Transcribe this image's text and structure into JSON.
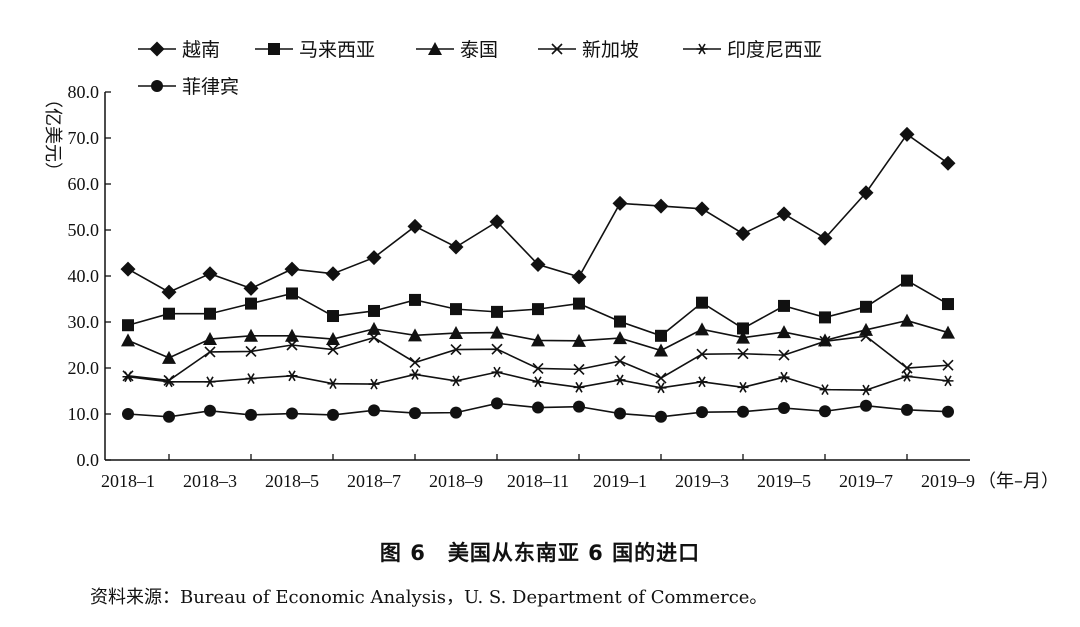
{
  "chart_data": {
    "type": "line",
    "y_unit_label": "（亿美元）",
    "x_unit_label": "（年–月）",
    "ylim": [
      0,
      80
    ],
    "y_ticks": [
      "0.0",
      "10.0",
      "20.0",
      "30.0",
      "40.0",
      "50.0",
      "60.0",
      "70.0",
      "80.0"
    ],
    "x": [
      "2018–1",
      "2018–2",
      "2018–3",
      "2018–4",
      "2018–5",
      "2018–6",
      "2018–7",
      "2018–8",
      "2018–9",
      "2018–10",
      "2018–11",
      "2018–12",
      "2019–1",
      "2019–2",
      "2019–3",
      "2019–4",
      "2019–5",
      "2019–6",
      "2019–7",
      "2019–8",
      "2019–9"
    ],
    "x_tick_labels": [
      "2018–1",
      "2018–3",
      "2018–5",
      "2018–7",
      "2018–9",
      "2018–11",
      "2019–1",
      "2019–3",
      "2019–5",
      "2019–7",
      "2019–9"
    ],
    "grid": false,
    "legend_position": "top",
    "series": [
      {
        "name": "越南",
        "marker": "diamond",
        "values": [
          41.5,
          36.5,
          40.5,
          37.3,
          41.5,
          40.5,
          44.0,
          50.8,
          46.3,
          51.8,
          42.5,
          39.8,
          55.8,
          55.2,
          54.6,
          49.2,
          53.5,
          48.2,
          58.1,
          70.8,
          64.5
        ]
      },
      {
        "name": "马来西亚",
        "marker": "square",
        "values": [
          29.3,
          31.8,
          31.8,
          34.0,
          36.2,
          31.3,
          32.4,
          34.8,
          32.8,
          32.2,
          32.8,
          34.0,
          30.1,
          27.0,
          34.2,
          28.6,
          33.5,
          31.0,
          33.3,
          39.0,
          33.9
        ]
      },
      {
        "name": "泰国",
        "marker": "triangle",
        "values": [
          26.0,
          22.2,
          26.3,
          27.0,
          27.0,
          26.3,
          28.5,
          27.1,
          27.6,
          27.7,
          26.0,
          25.9,
          26.5,
          23.8,
          28.4,
          26.6,
          27.8,
          26.0,
          28.3,
          30.3,
          27.7
        ]
      },
      {
        "name": "新加坡",
        "marker": "x",
        "values": [
          18.3,
          17.3,
          23.5,
          23.6,
          25.0,
          24.0,
          26.6,
          21.2,
          24.0,
          24.1,
          19.9,
          19.7,
          21.5,
          17.8,
          23.0,
          23.1,
          22.8,
          25.8,
          26.9,
          20.0,
          20.6
        ]
      },
      {
        "name": "印度尼西亚",
        "marker": "asterisk",
        "values": [
          18.1,
          17.0,
          17.0,
          17.7,
          18.3,
          16.6,
          16.5,
          18.6,
          17.2,
          19.1,
          17.0,
          15.8,
          17.4,
          15.7,
          17.0,
          15.8,
          18.0,
          15.3,
          15.2,
          18.2,
          17.2
        ]
      },
      {
        "name": "菲律宾",
        "marker": "circle",
        "values": [
          10.0,
          9.4,
          10.7,
          9.8,
          10.1,
          9.8,
          10.8,
          10.2,
          10.3,
          12.3,
          11.4,
          11.6,
          10.1,
          9.4,
          10.4,
          10.5,
          11.3,
          10.6,
          11.8,
          10.9,
          10.5
        ]
      }
    ]
  },
  "caption": "图 6　美国从东南亚 6 国的进口",
  "source": "资料来源：Bureau of Economic Analysis，U. S. Department of Commerce。"
}
